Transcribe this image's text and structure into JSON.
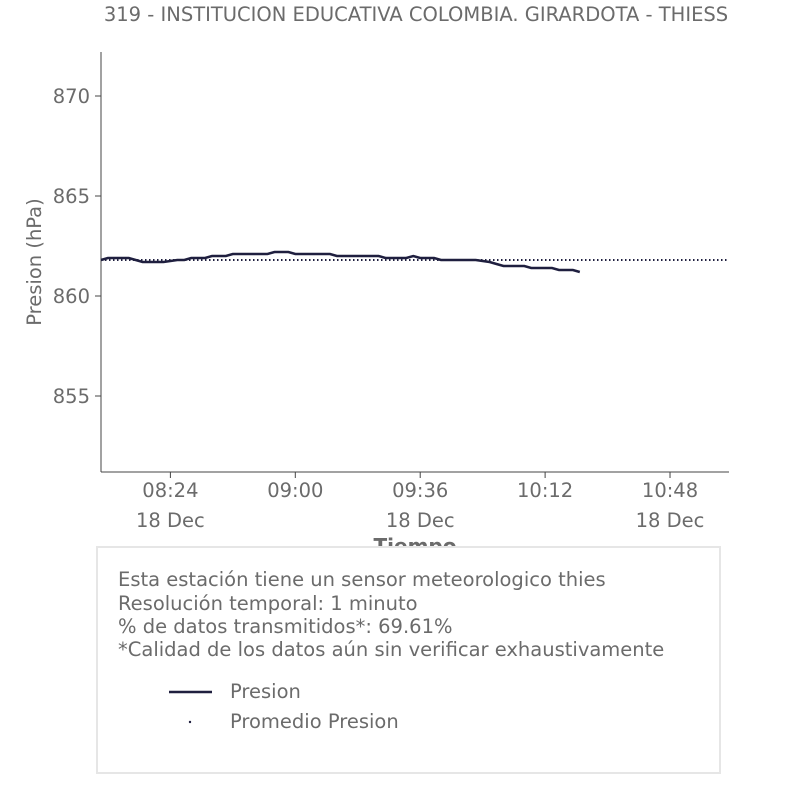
{
  "chart_data": {
    "type": "line",
    "title": "319 - INSTITUCION EDUCATIVA COLOMBIA. GIRARDOTA - THIESS",
    "xlabel": "Tiempo",
    "ylabel": "Presion (hPa)",
    "xlim": [
      "08:04",
      "11:05"
    ],
    "ylim": [
      851.2,
      872.2
    ],
    "x_ticks": [
      {
        "time": "08:24",
        "date": "18 Dec"
      },
      {
        "time": "09:00",
        "date": ""
      },
      {
        "time": "09:36",
        "date": "18 Dec"
      },
      {
        "time": "10:12",
        "date": ""
      },
      {
        "time": "10:48",
        "date": "18 Dec"
      }
    ],
    "y_ticks": [
      855,
      860,
      865,
      870
    ],
    "grid": false,
    "series": [
      {
        "name": "Presion",
        "style": "solid",
        "color": "#1f1f3f",
        "points": [
          [
            "08:04",
            861.8
          ],
          [
            "08:06",
            861.9
          ],
          [
            "08:12",
            861.9
          ],
          [
            "08:14",
            861.8
          ],
          [
            "08:16",
            861.7
          ],
          [
            "08:20",
            861.7
          ],
          [
            "08:22",
            861.7
          ],
          [
            "08:26",
            861.8
          ],
          [
            "08:28",
            861.8
          ],
          [
            "08:30",
            861.9
          ],
          [
            "08:34",
            861.9
          ],
          [
            "08:36",
            862.0
          ],
          [
            "08:40",
            862.0
          ],
          [
            "08:42",
            862.1
          ],
          [
            "08:52",
            862.1
          ],
          [
            "08:54",
            862.2
          ],
          [
            "08:58",
            862.2
          ],
          [
            "09:00",
            862.1
          ],
          [
            "09:10",
            862.1
          ],
          [
            "09:12",
            862.0
          ],
          [
            "09:24",
            862.0
          ],
          [
            "09:26",
            861.9
          ],
          [
            "09:32",
            861.9
          ],
          [
            "09:34",
            862.0
          ],
          [
            "09:36",
            861.9
          ],
          [
            "09:40",
            861.9
          ],
          [
            "09:42",
            861.8
          ],
          [
            "09:52",
            861.8
          ],
          [
            "09:56",
            861.7
          ],
          [
            "09:58",
            861.6
          ],
          [
            "10:00",
            861.5
          ],
          [
            "10:06",
            861.5
          ],
          [
            "10:08",
            861.4
          ],
          [
            "10:14",
            861.4
          ],
          [
            "10:16",
            861.3
          ],
          [
            "10:20",
            861.3
          ],
          [
            "10:22",
            861.2
          ]
        ]
      },
      {
        "name": "Promedio Presion",
        "style": "dotted",
        "color": "#1f1f3f",
        "points": [
          [
            "08:04",
            861.8
          ],
          [
            "11:05",
            861.8
          ]
        ]
      }
    ],
    "legend": {
      "placement": "inside-info-box"
    }
  },
  "info": {
    "lines": [
      "Esta estación tiene un sensor meteorologico thies",
      "Resolución temporal: 1 minuto",
      "% de datos transmitidos*: 69.61%",
      "*Calidad de los datos aún sin verificar exhaustivamente"
    ]
  },
  "legend_items": [
    {
      "label": "Presion",
      "marker": "line"
    },
    {
      "label": "Promedio Presion",
      "marker": "dot"
    }
  ]
}
